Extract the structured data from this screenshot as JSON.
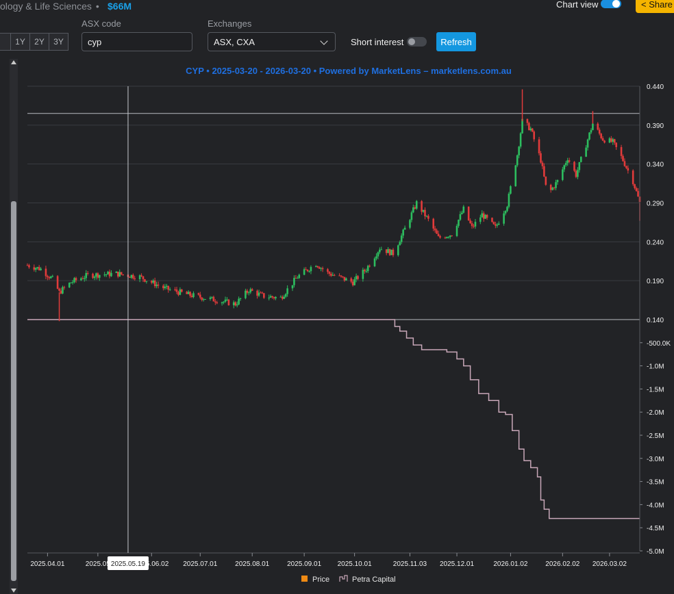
{
  "header": {
    "sector": "ology & Life Sciences",
    "separator": "•",
    "market_cap": "$66M",
    "chart_view_label": "Chart view",
    "share_label": "Share"
  },
  "controls": {
    "range_buttons": [
      "",
      "1Y",
      "2Y",
      "3Y"
    ],
    "asx_code_label": "ASX code",
    "asx_code_value": "cyp",
    "exchanges_label": "Exchanges",
    "exchanges_value": "ASX, CXA",
    "short_interest_label": "Short interest",
    "refresh_label": "Refresh"
  },
  "colors": {
    "up": "#2dbe5f",
    "down": "#e23b3b",
    "holdings_line": "#c9a8b9",
    "title": "#1f6fe0",
    "legend_price": "#f08a14"
  },
  "crosshair_label": "2025.05.19",
  "chart_data": {
    "type": "candlestick+line",
    "title": "CYP • 2025-03-20 - 2026-03-20 • Powered by MarketLens – marketlens.com.au",
    "price_axis": {
      "min": 0.14,
      "max": 0.44,
      "ticks": [
        "0.440",
        "0.390",
        "0.340",
        "0.290",
        "0.240",
        "0.190",
        "0.140"
      ]
    },
    "holdings_axis": {
      "min": -5000000,
      "max": 0,
      "ticks": [
        "-500.0K",
        "-1.0M",
        "-1.5M",
        "-2.0M",
        "-2.5M",
        "-3.0M",
        "-3.5M",
        "-4.0M",
        "-4.5M",
        "-5.0M"
      ]
    },
    "x_ticks": [
      "2025.04.01",
      "2025.05",
      "2025.06.02",
      "2025.07.01",
      "2025.08.01",
      "2025.09.01",
      "2025.10.01",
      "2025.11.03",
      "2025.12.01",
      "2026.01.02",
      "2026.02.02",
      "2026.03.02"
    ],
    "x_range": [
      "2025-03-20",
      "2026-03-20"
    ],
    "horizontal_refs": [
      0.405,
      0.14
    ],
    "crosshair_date": "2025-05-19",
    "price_keypoints": [
      [
        "2025-03-20",
        0.21
      ],
      [
        "2025-03-28",
        0.205
      ],
      [
        "2025-04-04",
        0.192
      ],
      [
        "2025-04-08",
        0.175
      ],
      [
        "2025-04-15",
        0.188
      ],
      [
        "2025-04-25",
        0.197
      ],
      [
        "2025-05-12",
        0.199
      ],
      [
        "2025-05-26",
        0.195
      ],
      [
        "2025-06-10",
        0.18
      ],
      [
        "2025-06-24",
        0.172
      ],
      [
        "2025-07-08",
        0.166
      ],
      [
        "2025-07-22",
        0.16
      ],
      [
        "2025-07-30",
        0.178
      ],
      [
        "2025-08-08",
        0.17
      ],
      [
        "2025-08-18",
        0.168
      ],
      [
        "2025-08-28",
        0.195
      ],
      [
        "2025-09-08",
        0.212
      ],
      [
        "2025-09-15",
        0.2
      ],
      [
        "2025-09-30",
        0.188
      ],
      [
        "2025-10-08",
        0.205
      ],
      [
        "2025-10-16",
        0.232
      ],
      [
        "2025-10-24",
        0.225
      ],
      [
        "2025-10-30",
        0.252
      ],
      [
        "2025-11-07",
        0.29
      ],
      [
        "2025-11-14",
        0.268
      ],
      [
        "2025-11-20",
        0.245
      ],
      [
        "2025-11-28",
        0.25
      ],
      [
        "2025-12-05",
        0.282
      ],
      [
        "2025-12-10",
        0.258
      ],
      [
        "2025-12-16",
        0.275
      ],
      [
        "2025-12-24",
        0.258
      ],
      [
        "2025-12-31",
        0.288
      ],
      [
        "2026-01-06",
        0.352
      ],
      [
        "2026-01-09",
        0.395
      ],
      [
        "2026-01-14",
        0.385
      ],
      [
        "2026-01-20",
        0.345
      ],
      [
        "2026-01-24",
        0.3
      ],
      [
        "2026-01-30",
        0.318
      ],
      [
        "2026-02-05",
        0.348
      ],
      [
        "2026-02-10",
        0.326
      ],
      [
        "2026-02-16",
        0.365
      ],
      [
        "2026-02-20",
        0.392
      ],
      [
        "2026-02-26",
        0.372
      ],
      [
        "2026-03-04",
        0.368
      ],
      [
        "2026-03-10",
        0.345
      ],
      [
        "2026-03-16",
        0.318
      ],
      [
        "2026-03-20",
        0.29
      ]
    ],
    "price_wicks": [
      {
        "date": "2025-04-08",
        "low": 0.138
      },
      {
        "date": "2026-01-09",
        "high": 0.436
      },
      {
        "date": "2026-02-20",
        "high": 0.408
      },
      {
        "date": "2026-03-20",
        "low": 0.267
      }
    ],
    "series": [
      {
        "name": "Price",
        "kind": "candlestick"
      },
      {
        "name": "Petra Capital",
        "kind": "step",
        "points": [
          [
            "2025-03-20",
            0
          ],
          [
            "2025-10-23",
            0
          ],
          [
            "2025-10-25",
            -150000
          ],
          [
            "2025-10-28",
            -250000
          ],
          [
            "2025-11-01",
            -400000
          ],
          [
            "2025-11-05",
            -550000
          ],
          [
            "2025-11-10",
            -650000
          ],
          [
            "2025-11-20",
            -650000
          ],
          [
            "2025-11-25",
            -700000
          ],
          [
            "2025-12-01",
            -850000
          ],
          [
            "2025-12-05",
            -1000000
          ],
          [
            "2025-12-09",
            -1300000
          ],
          [
            "2025-12-14",
            -1600000
          ],
          [
            "2025-12-20",
            -1750000
          ],
          [
            "2025-12-26",
            -2000000
          ],
          [
            "2025-12-30",
            -2050000
          ],
          [
            "2026-01-03",
            -2400000
          ],
          [
            "2026-01-07",
            -2800000
          ],
          [
            "2026-01-10",
            -3050000
          ],
          [
            "2026-01-14",
            -3200000
          ],
          [
            "2026-01-18",
            -3400000
          ],
          [
            "2026-01-20",
            -3900000
          ],
          [
            "2026-01-22",
            -4100000
          ],
          [
            "2026-01-25",
            -4300000
          ],
          [
            "2026-03-20",
            -4300000
          ]
        ]
      }
    ],
    "legend": [
      {
        "name": "Price",
        "color": "#f08a14"
      },
      {
        "name": "Petra Capital",
        "color": "#c9a8b9"
      }
    ],
    "legend_position": "bottom-center",
    "grid": true
  }
}
